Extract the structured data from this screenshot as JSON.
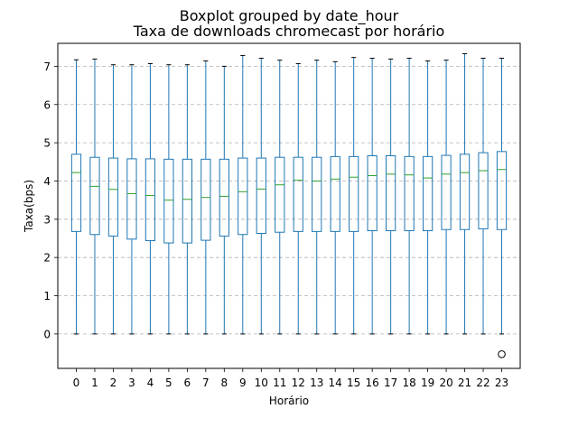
{
  "chart_data": {
    "type": "boxplot",
    "suptitle": "Boxplot grouped by date_hour",
    "title": "Taxa de downloads chromecast por horário",
    "xlabel": "Horário",
    "ylabel": "Taxa(bps)",
    "ylim": [
      -0.9,
      7.6
    ],
    "yticks": [
      0,
      1,
      2,
      3,
      4,
      5,
      6,
      7
    ],
    "grid": "y-dashed",
    "categories": [
      "0",
      "1",
      "2",
      "3",
      "4",
      "5",
      "6",
      "7",
      "8",
      "9",
      "10",
      "11",
      "12",
      "13",
      "14",
      "15",
      "16",
      "17",
      "18",
      "19",
      "20",
      "21",
      "22",
      "23"
    ],
    "boxes": [
      {
        "whisker_low": 0,
        "q1": 2.68,
        "median": 4.22,
        "q3": 4.7,
        "whisker_high": 7.17
      },
      {
        "whisker_low": 0,
        "q1": 2.6,
        "median": 3.86,
        "q3": 4.62,
        "whisker_high": 7.19
      },
      {
        "whisker_low": 0,
        "q1": 2.56,
        "median": 3.78,
        "q3": 4.6,
        "whisker_high": 7.04
      },
      {
        "whisker_low": 0,
        "q1": 2.48,
        "median": 3.67,
        "q3": 4.58,
        "whisker_high": 7.04
      },
      {
        "whisker_low": 0,
        "q1": 2.44,
        "median": 3.62,
        "q3": 4.58,
        "whisker_high": 7.07
      },
      {
        "whisker_low": 0,
        "q1": 2.38,
        "median": 3.5,
        "q3": 4.57,
        "whisker_high": 7.04
      },
      {
        "whisker_low": 0,
        "q1": 2.38,
        "median": 3.52,
        "q3": 4.57,
        "whisker_high": 7.04
      },
      {
        "whisker_low": 0,
        "q1": 2.45,
        "median": 3.57,
        "q3": 4.57,
        "whisker_high": 7.14
      },
      {
        "whisker_low": 0,
        "q1": 2.56,
        "median": 3.6,
        "q3": 4.57,
        "whisker_high": 7.0
      },
      {
        "whisker_low": 0,
        "q1": 2.6,
        "median": 3.72,
        "q3": 4.6,
        "whisker_high": 7.28
      },
      {
        "whisker_low": 0,
        "q1": 2.63,
        "median": 3.79,
        "q3": 4.6,
        "whisker_high": 7.21
      },
      {
        "whisker_low": 0,
        "q1": 2.66,
        "median": 3.9,
        "q3": 4.62,
        "whisker_high": 7.16
      },
      {
        "whisker_low": 0,
        "q1": 2.68,
        "median": 4.02,
        "q3": 4.62,
        "whisker_high": 7.07
      },
      {
        "whisker_low": 0,
        "q1": 2.68,
        "median": 4.0,
        "q3": 4.62,
        "whisker_high": 7.16
      },
      {
        "whisker_low": 0,
        "q1": 2.68,
        "median": 4.05,
        "q3": 4.64,
        "whisker_high": 7.12
      },
      {
        "whisker_low": 0,
        "q1": 2.68,
        "median": 4.1,
        "q3": 4.64,
        "whisker_high": 7.23
      },
      {
        "whisker_low": 0,
        "q1": 2.7,
        "median": 4.14,
        "q3": 4.66,
        "whisker_high": 7.21
      },
      {
        "whisker_low": 0,
        "q1": 2.7,
        "median": 4.18,
        "q3": 4.66,
        "whisker_high": 7.19
      },
      {
        "whisker_low": 0,
        "q1": 2.7,
        "median": 4.16,
        "q3": 4.64,
        "whisker_high": 7.21
      },
      {
        "whisker_low": 0,
        "q1": 2.7,
        "median": 4.08,
        "q3": 4.64,
        "whisker_high": 7.14
      },
      {
        "whisker_low": 0,
        "q1": 2.73,
        "median": 4.18,
        "q3": 4.67,
        "whisker_high": 7.16
      },
      {
        "whisker_low": 0,
        "q1": 2.73,
        "median": 4.22,
        "q3": 4.7,
        "whisker_high": 7.33
      },
      {
        "whisker_low": 0,
        "q1": 2.75,
        "median": 4.27,
        "q3": 4.74,
        "whisker_high": 7.21
      },
      {
        "whisker_low": 0,
        "q1": 2.73,
        "median": 4.3,
        "q3": 4.77,
        "whisker_high": 7.21
      }
    ],
    "outliers": [
      {
        "category": "23",
        "value": -0.53
      }
    ],
    "colors": {
      "box": "#1f77b4",
      "median": "#2ca02c",
      "whisker": "#1f77b4",
      "cap": "#000000",
      "grid": "#b0b0b0",
      "outlier": "#000000"
    }
  }
}
